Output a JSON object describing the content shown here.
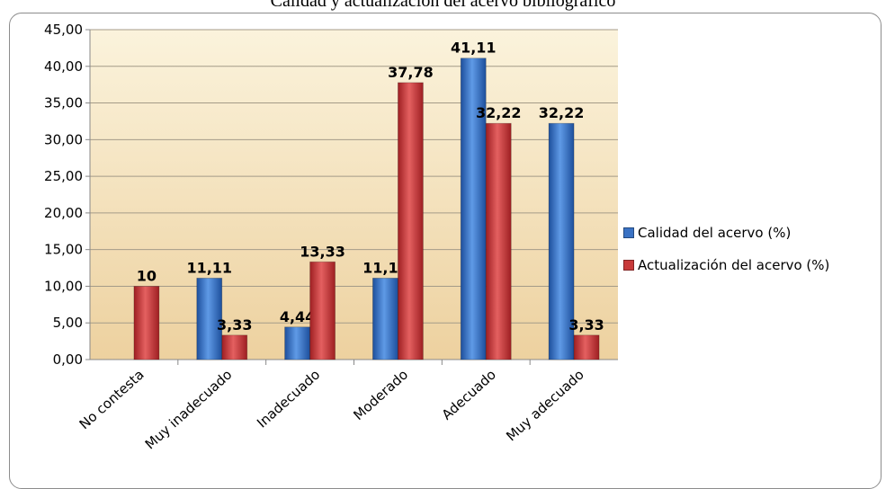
{
  "chart_data": {
    "type": "bar",
    "title": "Calidad y actualización del acervo bibliográfico",
    "categories": [
      "No contesta",
      "Muy inadecuado",
      "Inadecuado",
      "Moderado",
      "Adecuado",
      "Muy adecuado"
    ],
    "series": [
      {
        "name": "Calidad del acervo (%)",
        "values": [
          null,
          11.11,
          4.44,
          11.11,
          41.11,
          32.22
        ],
        "labels": [
          "",
          "11,11",
          "4,44",
          "11,11",
          "41,11",
          "32,22"
        ],
        "color": "#3a72c4"
      },
      {
        "name": "Actualización del acervo (%)",
        "values": [
          10,
          3.33,
          13.33,
          37.78,
          32.22,
          3.33
        ],
        "labels": [
          "10",
          "3,33",
          "13,33",
          "37,78",
          "32,22",
          "3,33"
        ],
        "color": "#c83a3a"
      }
    ],
    "ylim": [
      0,
      45
    ],
    "yticks": [
      "0,00",
      "5,00",
      "10,00",
      "15,00",
      "20,00",
      "25,00",
      "30,00",
      "35,00",
      "40,00",
      "45,00"
    ],
    "grid": true,
    "legend_position": "right",
    "xlabel": "",
    "ylabel": ""
  }
}
